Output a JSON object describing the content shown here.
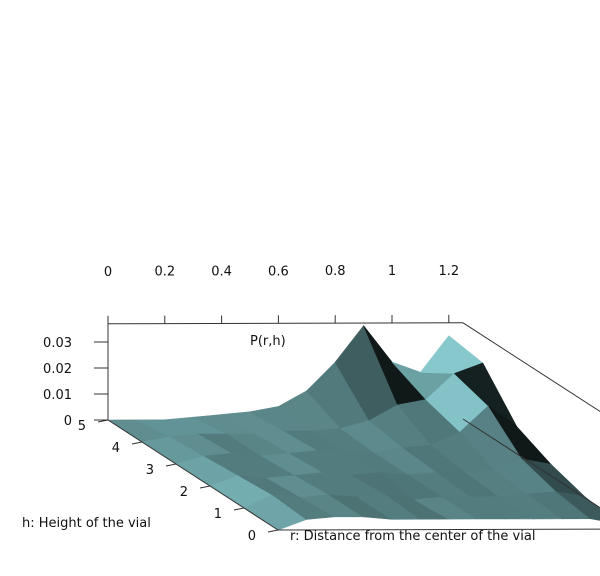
{
  "chart_data": {
    "type": "surface3d",
    "z_label": "P(r,h)",
    "x_label": "r: Distance from the center of the vial",
    "y_label": "h: Height of the vial",
    "r_ticks": [
      "0",
      "0.2",
      "0.4",
      "0.6",
      "0.8",
      "1",
      "1.2"
    ],
    "h_ticks": [
      "0",
      "1",
      "2",
      "3",
      "4",
      "5"
    ],
    "z_ticks": [
      "0",
      "0.01",
      "0.02",
      "0.03"
    ],
    "r_range": [
      0,
      1.25
    ],
    "h_range": [
      0,
      5
    ],
    "z_range": [
      0,
      0.035
    ],
    "grid": false,
    "surface_color": "#86c8cc",
    "surface_r": [
      0.0,
      0.1,
      0.2,
      0.3,
      0.4,
      0.5,
      0.6,
      0.7,
      0.8,
      0.9,
      1.0,
      1.1,
      1.2
    ],
    "surface_h": [
      0,
      1,
      2,
      3,
      4,
      5
    ],
    "surface_z": [
      [
        0.0,
        0.004,
        0.005,
        0.005,
        0.004,
        0.004,
        0.004,
        0.004,
        0.004,
        0.004,
        0.004,
        0.004,
        0.002
      ],
      [
        0.0,
        0.005,
        0.004,
        0.005,
        0.004,
        0.005,
        0.003,
        0.004,
        0.004,
        0.004,
        0.005,
        0.006,
        0.004
      ],
      [
        0.0,
        0.004,
        0.003,
        0.004,
        0.005,
        0.004,
        0.005,
        0.004,
        0.005,
        0.005,
        0.006,
        0.01,
        0.008
      ],
      [
        0.0,
        0.003,
        0.004,
        0.003,
        0.004,
        0.005,
        0.004,
        0.004,
        0.006,
        0.007,
        0.012,
        0.022,
        0.014
      ],
      [
        0.0,
        0.002,
        0.003,
        0.003,
        0.003,
        0.004,
        0.004,
        0.005,
        0.008,
        0.014,
        0.016,
        0.026,
        0.03
      ],
      [
        0.0,
        0.0,
        0.0,
        0.001,
        0.002,
        0.003,
        0.005,
        0.011,
        0.022,
        0.036,
        0.022,
        0.018,
        0.032
      ]
    ]
  }
}
